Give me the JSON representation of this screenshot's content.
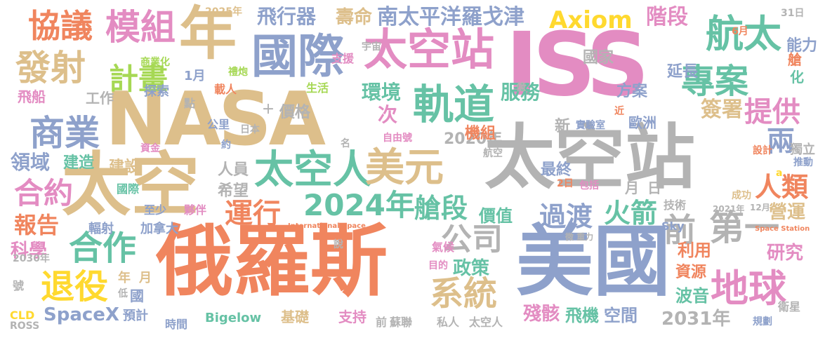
{
  "words": [
    {
      "text": "俄羅斯",
      "color": "#F0855E"
    },
    {
      "text": "NASA",
      "color": "#DDBF8B"
    },
    {
      "text": "美國",
      "color": "#8EA1CB"
    },
    {
      "text": "ISS",
      "color": "#E38CC2"
    },
    {
      "text": "太空站",
      "color": "#B3B3B3"
    },
    {
      "text": "太空",
      "color": "#DDBF8B"
    },
    {
      "text": "年",
      "color": "#DDBF8B"
    },
    {
      "text": "國際",
      "color": "#8EA1CB"
    },
    {
      "text": "太空站",
      "color": "#E38CC2"
    },
    {
      "text": "航太",
      "color": "#66C2A5"
    },
    {
      "text": "專案",
      "color": "#66C2A5"
    },
    {
      "text": "模組",
      "color": "#E38CC2"
    },
    {
      "text": "協議",
      "color": "#F0855E"
    },
    {
      "text": "發射",
      "color": "#DDBF8B"
    },
    {
      "text": "商業",
      "color": "#8EA1CB"
    },
    {
      "text": "軌道",
      "color": "#66C2A5"
    },
    {
      "text": "太空人",
      "color": "#66C2A5"
    },
    {
      "text": "美元",
      "color": "#DDBF8B"
    },
    {
      "text": "2024年",
      "color": "#66C2A5"
    },
    {
      "text": "艙段",
      "color": "#66C2A5"
    },
    {
      "text": "地球",
      "color": "#E38CC2"
    },
    {
      "text": "退役",
      "color": "#FFD92F"
    },
    {
      "text": "合作",
      "color": "#66C2A5"
    },
    {
      "text": "系統",
      "color": "#DDBF8B"
    },
    {
      "text": "公司",
      "color": "#B3B3B3"
    },
    {
      "text": "第一",
      "color": "#B3B3B3"
    },
    {
      "text": "前",
      "color": "#B3B3B3"
    },
    {
      "text": "火箭",
      "color": "#66C2A5"
    },
    {
      "text": "過渡",
      "color": "#8EA1CB"
    },
    {
      "text": "運行",
      "color": "#F0855E"
    },
    {
      "text": "合約",
      "color": "#E38CC2"
    },
    {
      "text": "計畫",
      "color": "#A6D854"
    },
    {
      "text": "人類",
      "color": "#F0855E"
    },
    {
      "text": "提供",
      "color": "#E38CC2"
    },
    {
      "text": "兩",
      "color": "#8EA1CB"
    },
    {
      "text": "Axiom",
      "color": "#FFD92F"
    },
    {
      "text": "南太平洋羅戈津",
      "color": "#8EA1CB"
    },
    {
      "text": "飛行器",
      "color": "#8EA1CB"
    },
    {
      "text": "壽命",
      "color": "#DDBF8B"
    },
    {
      "text": "階段",
      "color": "#E38CC2"
    },
    {
      "text": "環境",
      "color": "#66C2A5"
    },
    {
      "text": "服務",
      "color": "#66C2A5"
    },
    {
      "text": "簽署",
      "color": "#DDBF8B"
    },
    {
      "text": "延長",
      "color": "#8EA1CB"
    },
    {
      "text": "能力",
      "color": "#8EA1CB"
    },
    {
      "text": "國家",
      "color": "#B3B3B3"
    },
    {
      "text": "方案",
      "color": "#8EA1CB"
    },
    {
      "text": "次",
      "color": "#E38CC2"
    },
    {
      "text": "報告",
      "color": "#F0855E"
    },
    {
      "text": "領域",
      "color": "#8EA1CB"
    },
    {
      "text": "建造",
      "color": "#66C2A5"
    },
    {
      "text": "建設",
      "color": "#DDBF8B"
    },
    {
      "text": "科學",
      "color": "#E38CC2"
    },
    {
      "text": "SpaceX",
      "color": "#8EA1CB"
    },
    {
      "text": "營運",
      "color": "#DDBF8B"
    },
    {
      "text": "研究",
      "color": "#E38CC2"
    },
    {
      "text": "利用",
      "color": "#F0855E"
    },
    {
      "text": "資源",
      "color": "#F0855E"
    },
    {
      "text": "波音",
      "color": "#66C2A5"
    },
    {
      "text": "2031年",
      "color": "#B3B3B3"
    },
    {
      "text": "殘骸",
      "color": "#E38CC2"
    },
    {
      "text": "飛機",
      "color": "#66C2A5"
    },
    {
      "text": "空間",
      "color": "#8EA1CB"
    },
    {
      "text": "價值",
      "color": "#66C2A5"
    },
    {
      "text": "政策",
      "color": "#66C2A5"
    },
    {
      "text": "2020年",
      "color": "#B3B3B3"
    },
    {
      "text": "機組",
      "color": "#F0855E"
    },
    {
      "text": "最終",
      "color": "#8EA1CB"
    },
    {
      "text": "價格",
      "color": "#B3B3B3"
    },
    {
      "text": "人員",
      "color": "#B3B3B3"
    },
    {
      "text": "希望",
      "color": "#B3B3B3"
    },
    {
      "text": "工作",
      "color": "#B3B3B3"
    },
    {
      "text": "探索",
      "color": "#8EA1CB"
    },
    {
      "text": "飛船",
      "color": "#E38CC2"
    },
    {
      "text": "國際",
      "color": "#66C2A5"
    },
    {
      "text": "至少",
      "color": "#8EA1CB"
    },
    {
      "text": "夥伴",
      "color": "#E38CC2"
    },
    {
      "text": "加拿大",
      "color": "#8EA1CB"
    },
    {
      "text": "輻射",
      "color": "#8EA1CB"
    },
    {
      "text": "年",
      "color": "#DDBF8B"
    },
    {
      "text": "月",
      "color": "#DDBF8B"
    },
    {
      "text": "國",
      "color": "#8EA1CB"
    },
    {
      "text": "預計",
      "color": "#8EA1CB"
    },
    {
      "text": "時間",
      "color": "#8EA1CB"
    },
    {
      "text": "Bigelow",
      "color": "#66C2A5"
    },
    {
      "text": "基礎",
      "color": "#DDBF8B"
    },
    {
      "text": "支持",
      "color": "#E38CC2"
    },
    {
      "text": "前",
      "color": "#B3B3B3"
    },
    {
      "text": "蘇聯",
      "color": "#B3B3B3"
    },
    {
      "text": "私人",
      "color": "#B3B3B3"
    },
    {
      "text": "太空人",
      "color": "#B3B3B3"
    },
    {
      "text": "歐洲",
      "color": "#8EA1CB"
    },
    {
      "text": "實驗室",
      "color": "#8EA1CB"
    },
    {
      "text": "新",
      "color": "#B3B3B3"
    },
    {
      "text": "航空",
      "color": "#B3B3B3"
    },
    {
      "text": "自由號",
      "color": "#E38CC2"
    },
    {
      "text": "名",
      "color": "#B3B3B3"
    },
    {
      "text": "約",
      "color": "#8EA1CB"
    },
    {
      "text": "公里",
      "color": "#8EA1CB"
    },
    {
      "text": "日本",
      "color": "#B3B3B3"
    },
    {
      "text": "生活",
      "color": "#A6D854"
    },
    {
      "text": "載人",
      "color": "#F0855E"
    },
    {
      "text": "商業化",
      "color": "#A6D854"
    },
    {
      "text": "禮炮",
      "color": "#A6D854"
    },
    {
      "text": "支援",
      "color": "#E38CC2"
    },
    {
      "text": "宇宙",
      "color": "#B3B3B3"
    },
    {
      "text": "資金",
      "color": "#E38CC2"
    },
    {
      "text": "2025年",
      "color": "#DDBF8B"
    },
    {
      "text": "月",
      "color": "#B3B3B3"
    },
    {
      "text": "日",
      "color": "#B3B3B3"
    },
    {
      "text": "6月",
      "color": "#F0855E"
    },
    {
      "text": "31日",
      "color": "#B3B3B3"
    },
    {
      "text": "艙",
      "color": "#F0855E"
    },
    {
      "text": "化",
      "color": "#66C2A5"
    },
    {
      "text": "1月",
      "color": "#8EA1CB"
    },
    {
      "text": "點",
      "color": "#B3B3B3"
    },
    {
      "text": "2日",
      "color": "#F0855E"
    },
    {
      "text": "包括",
      "color": "#E38CC2"
    },
    {
      "text": "成功",
      "color": "#DDBF8B"
    },
    {
      "text": "技術",
      "color": "#B3B3B3"
    },
    {
      "text": "獨立",
      "color": "#B3B3B3"
    },
    {
      "text": "設計",
      "color": "#F0855E"
    },
    {
      "text": "推動",
      "color": "#8EA1CB"
    },
    {
      "text": "Sky",
      "color": "#8EA1CB"
    },
    {
      "text": "2021年",
      "color": "#B3B3B3"
    },
    {
      "text": "12月",
      "color": "#B3B3B3"
    },
    {
      "text": "規劃",
      "color": "#8EA1CB"
    },
    {
      "text": "衛星",
      "color": "#B3B3B3"
    },
    {
      "text": "2030年",
      "color": "#B3B3B3"
    },
    {
      "text": "號",
      "color": "#B3B3B3"
    },
    {
      "text": "CLD",
      "color": "#FFD92F"
    },
    {
      "text": "ROSS",
      "color": "#B3B3B3"
    },
    {
      "text": "氣候",
      "color": "#E38CC2"
    },
    {
      "text": "目的",
      "color": "#E38CC2"
    },
    {
      "text": "說",
      "color": "#B3B3B3"
    },
    {
      "text": "低",
      "color": "#B3B3B3"
    },
    {
      "text": "＋",
      "color": "#B3B3B3"
    },
    {
      "text": "International Space",
      "color": "#F0855E"
    },
    {
      "text": "Space Station",
      "color": "#F0855E"
    },
    {
      "text": "微 重力",
      "color": "#B3B3B3"
    },
    {
      "text": "近",
      "color": "#F0855E"
    },
    {
      "text": "億",
      "color": "#B3B3B3"
    },
    {
      "text": "a",
      "color": "#FFD92F"
    }
  ]
}
